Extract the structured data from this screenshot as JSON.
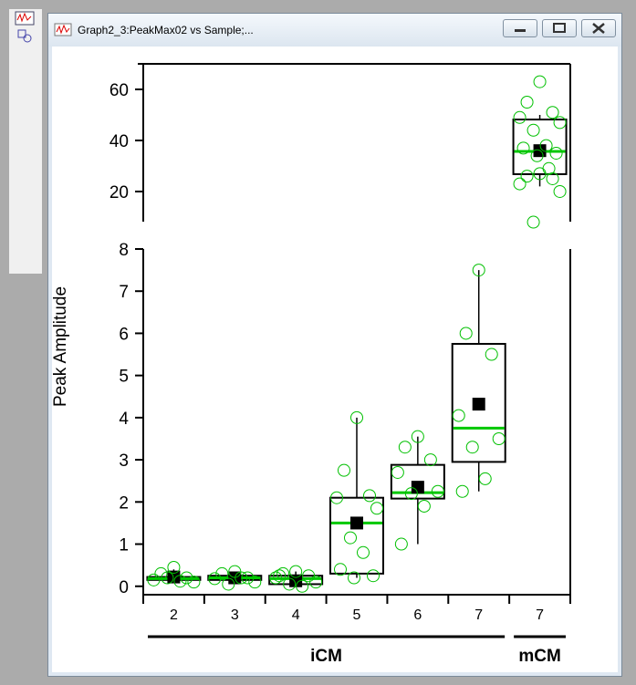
{
  "window": {
    "title": "Graph2_3:PeakMax02 vs Sample;..."
  },
  "chart_data": {
    "type": "box",
    "y_label": "Peak Amplitude",
    "categories": [
      "2",
      "3",
      "4",
      "5",
      "6",
      "7",
      "7"
    ],
    "groups": [
      {
        "label": "iCM",
        "size": 6
      },
      {
        "label": "mCM",
        "size": 1
      }
    ],
    "ylim": [
      -0.2,
      8
    ],
    "yticks": [
      0,
      1,
      2,
      3,
      4,
      5,
      6,
      7,
      8
    ],
    "y2lim": [
      8.2,
      70
    ],
    "y2ticks": [
      20,
      40,
      60
    ],
    "box_color": "#000000",
    "median_color": "#00c800",
    "point_color": "#00c000",
    "boxes": [
      {
        "min": 0.1,
        "q1": 0.15,
        "median": 0.18,
        "q3": 0.22,
        "max": 0.4,
        "mean": 0.22,
        "points": [
          0.45,
          0.3,
          0.2,
          0.15,
          0.1,
          0.2,
          0.12
        ]
      },
      {
        "min": 0.05,
        "q1": 0.15,
        "median": 0.2,
        "q3": 0.25,
        "max": 0.35,
        "mean": 0.2,
        "points": [
          0.35,
          0.3,
          0.2,
          0.18,
          0.1,
          0.05,
          0.2
        ]
      },
      {
        "min": 0.0,
        "q1": 0.05,
        "median": 0.18,
        "q3": 0.25,
        "max": 0.35,
        "mean": 0.13,
        "points": [
          0.35,
          0.3,
          0.25,
          0.2,
          0.1,
          0.05,
          0.0,
          0.25
        ]
      },
      {
        "min": 0.2,
        "q1": 0.3,
        "median": 1.5,
        "q3": 2.1,
        "max": 4.0,
        "mean": 1.5,
        "points": [
          4.0,
          2.75,
          2.15,
          2.1,
          1.85,
          1.15,
          0.8,
          0.4,
          0.25,
          0.2
        ]
      },
      {
        "min": 1.0,
        "q1": 2.08,
        "median": 2.22,
        "q3": 2.88,
        "max": 3.55,
        "mean": 2.35,
        "points": [
          3.55,
          3.3,
          3.0,
          2.7,
          2.25,
          2.2,
          1.9,
          1.0
        ]
      },
      {
        "min": 2.25,
        "q1": 2.95,
        "median": 3.75,
        "q3": 5.75,
        "max": 7.5,
        "mean": 4.32,
        "points": [
          7.5,
          6.0,
          5.5,
          4.05,
          3.5,
          3.3,
          2.55,
          2.25
        ]
      },
      {
        "axis": "y2",
        "min": 22,
        "q1": 26.8,
        "median": 35.7,
        "q3": 48.2,
        "max": 50,
        "mean": 36,
        "points": [
          63,
          55,
          51,
          49,
          47,
          44,
          38,
          37,
          35,
          34,
          29,
          27,
          26,
          25,
          23,
          20,
          8
        ]
      }
    ]
  }
}
